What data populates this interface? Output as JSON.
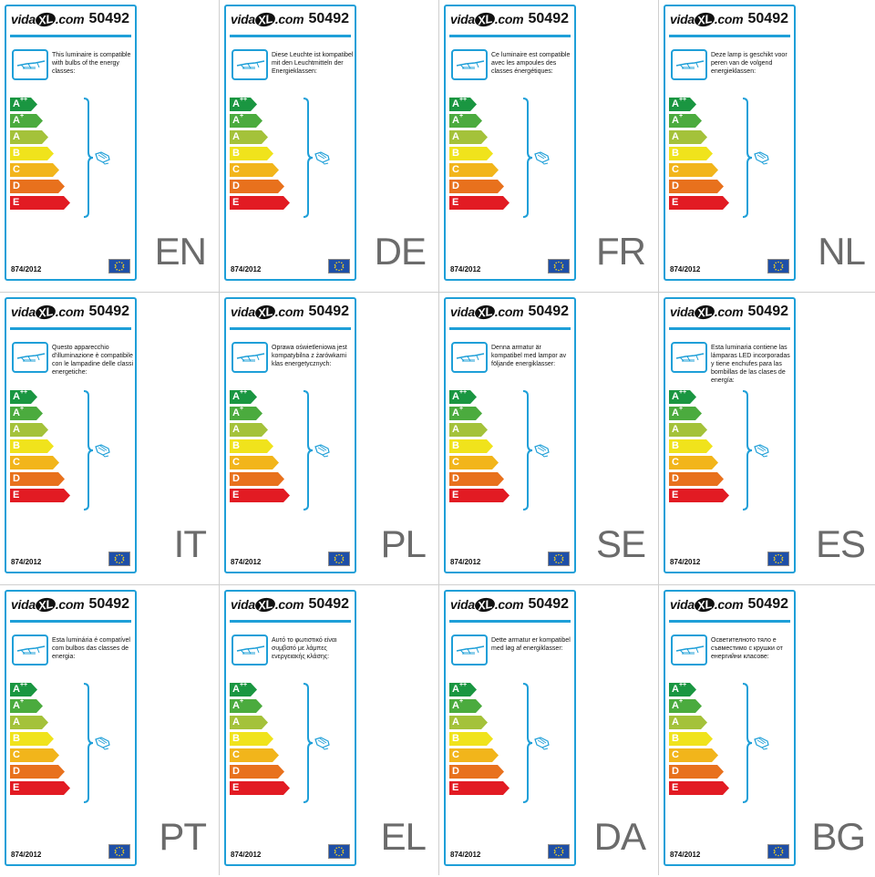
{
  "brand": "vidaXL.com",
  "brand_parts": {
    "pre": "vida",
    "xl": "XL",
    "post": ".com"
  },
  "article_number": "50492",
  "regulation": "874/2012",
  "colors": {
    "border": "#1e9fd8",
    "A++": "#1a9641",
    "A+": "#4bab3e",
    "A": "#a4c23a",
    "B": "#f0e31c",
    "C": "#f2b51b",
    "D": "#e8711d",
    "E": "#e21b23",
    "lang_text": "#6b6b6b"
  },
  "energy_classes": [
    {
      "base": "A",
      "sup": "++",
      "width": 0.3
    },
    {
      "base": "A",
      "sup": "+",
      "width": 0.36
    },
    {
      "base": "A",
      "sup": "",
      "width": 0.42
    },
    {
      "base": "B",
      "sup": "",
      "width": 0.48
    },
    {
      "base": "C",
      "sup": "",
      "width": 0.54
    },
    {
      "base": "D",
      "sup": "",
      "width": 0.6
    },
    {
      "base": "E",
      "sup": "",
      "width": 0.66
    }
  ],
  "icons": [
    "luminaire-icon",
    "bulb-icon",
    "eu-flag-icon",
    "bracket-icon"
  ],
  "labels": [
    {
      "lang": "EN",
      "text": "This luminaire is compatible with bulbs of the energy classes:"
    },
    {
      "lang": "DE",
      "text": "Diese Leuchte ist kompatibel mit den Leuchtmitteln der Energieklassen:"
    },
    {
      "lang": "FR",
      "text": "Ce luminaire est compatible avec les ampoules des classes énergétiques:"
    },
    {
      "lang": "NL",
      "text": "Deze lamp is geschikt voor peren van de volgend energieklassen:"
    },
    {
      "lang": "IT",
      "text": "Questo apparecchio d'illuminazione è compatibile con le lampadine delle classi energetiche:"
    },
    {
      "lang": "PL",
      "text": "Oprawa oświetleniowa jest kompatybilna z żarówkami klas energetycznych:"
    },
    {
      "lang": "SE",
      "text": "Denna armatur är kompatibel med lampor av följande energiklasser:"
    },
    {
      "lang": "ES",
      "text": "Esta luminaria contiene las lámparas LED incorporadas y tiene enchufes para las bombillas de las clases de energía:"
    },
    {
      "lang": "PT",
      "text": "Esta luminária é compatível com bulbos das classes de energia:"
    },
    {
      "lang": "EL",
      "text": "Αυτό το φωτιστικό είναι συμβατό με λάμπες ενεργειακής κλάσης:"
    },
    {
      "lang": "DA",
      "text": "Dette armatur er kompatibel med løg af energiklasser:"
    },
    {
      "lang": "BG",
      "text": "Осветителното тяло е съвместимо с крушки от енергийни класове:"
    }
  ]
}
